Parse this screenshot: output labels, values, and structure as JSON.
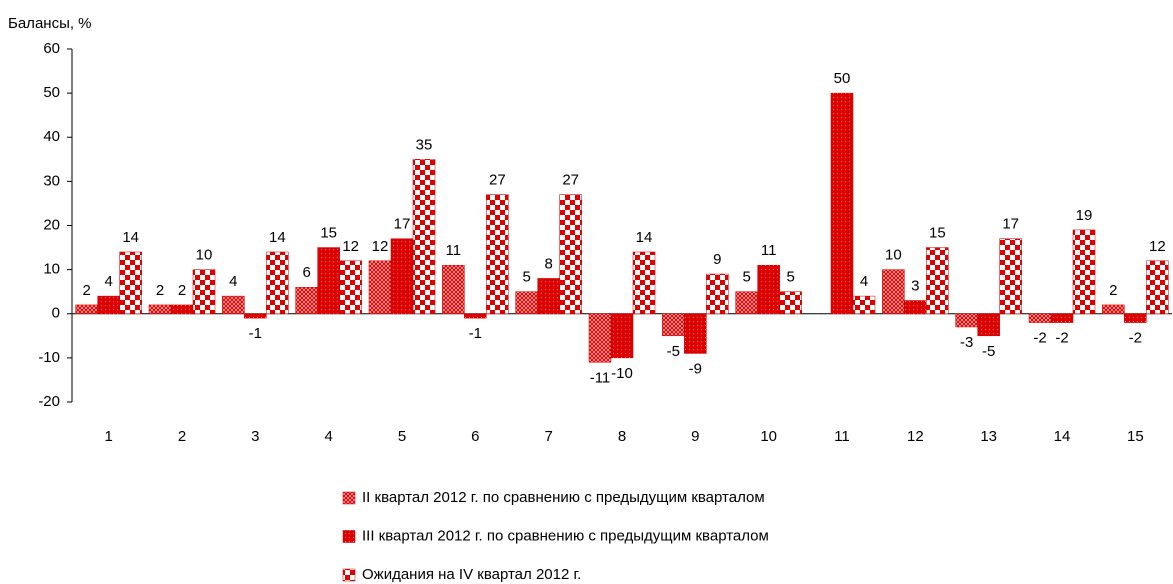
{
  "chart_data": {
    "type": "bar",
    "y_label": "Балансы, %",
    "categories": [
      "1",
      "2",
      "3",
      "4",
      "5",
      "6",
      "7",
      "8",
      "9",
      "10",
      "11",
      "12",
      "13",
      "14",
      "15"
    ],
    "series": [
      {
        "name": "II квартал 2012 г. по сравнению с предыдущим кварталом",
        "color": "#e00000",
        "values": [
          2,
          2,
          4,
          6,
          12,
          11,
          5,
          -11,
          -5,
          5,
          null,
          10,
          -3,
          -2,
          2
        ]
      },
      {
        "name": "III квартал 2012 г. по сравнению с предыдущим кварталом",
        "color": "#e00000",
        "values": [
          4,
          2,
          -1,
          15,
          17,
          -1,
          8,
          -10,
          -9,
          11,
          50,
          3,
          -5,
          -2,
          -2
        ]
      },
      {
        "name": "Ожидания на IV квартал 2012 г.",
        "color": "#e00000",
        "values": [
          14,
          10,
          14,
          12,
          35,
          27,
          27,
          14,
          9,
          5,
          4,
          15,
          17,
          19,
          12
        ]
      }
    ],
    "ylim": [
      -20,
      60
    ],
    "yticks": [
      -20,
      -10,
      0,
      10,
      20,
      30,
      40,
      50,
      60
    ],
    "grid": false
  }
}
